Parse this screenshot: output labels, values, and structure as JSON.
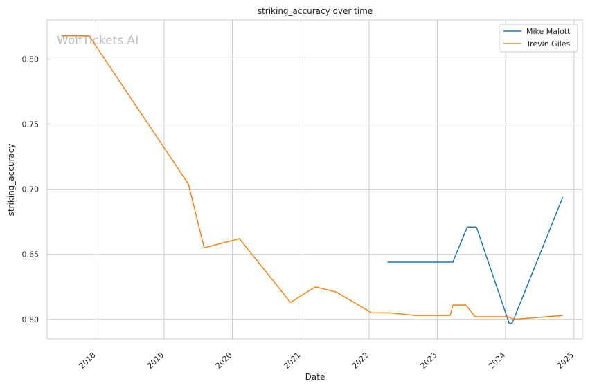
{
  "chart_data": {
    "type": "line",
    "title": "striking_accuracy over time",
    "xlabel": "Date",
    "ylabel": "striking_accuracy",
    "watermark": "WolfTickets.AI",
    "x_ticks": [
      "2018",
      "2019",
      "2020",
      "2021",
      "2022",
      "2023",
      "2024",
      "2025"
    ],
    "y_ticks": [
      "0.60",
      "0.65",
      "0.70",
      "0.75",
      "0.80"
    ],
    "ylim": [
      0.585,
      0.83
    ],
    "xlim": [
      "2017-04-15",
      "2025-02-15"
    ],
    "grid": true,
    "legend_position": "top-right",
    "series": [
      {
        "name": "Mike Malott",
        "color": "#1f77b4",
        "points": [
          {
            "x": "2022-04-09",
            "y": 0.644
          },
          {
            "x": "2023-03-25",
            "y": 0.644
          },
          {
            "x": "2023-06-10",
            "y": 0.671
          },
          {
            "x": "2023-07-29",
            "y": 0.671
          },
          {
            "x": "2024-01-20",
            "y": 0.597
          },
          {
            "x": "2024-02-05",
            "y": 0.597
          },
          {
            "x": "2024-11-02",
            "y": 0.694
          }
        ]
      },
      {
        "name": "Trevin Giles",
        "color": "#ff7f0e",
        "points": [
          {
            "x": "2017-07-01",
            "y": 0.818
          },
          {
            "x": "2017-11-25",
            "y": 0.818
          },
          {
            "x": "2019-05-11",
            "y": 0.704
          },
          {
            "x": "2019-08-03",
            "y": 0.655
          },
          {
            "x": "2020-02-08",
            "y": 0.662
          },
          {
            "x": "2020-11-07",
            "y": 0.613
          },
          {
            "x": "2021-03-20",
            "y": 0.625
          },
          {
            "x": "2021-07-10",
            "y": 0.621
          },
          {
            "x": "2022-01-15",
            "y": 0.605
          },
          {
            "x": "2022-04-23",
            "y": 0.605
          },
          {
            "x": "2022-09-03",
            "y": 0.603
          },
          {
            "x": "2023-03-11",
            "y": 0.603
          },
          {
            "x": "2023-03-25",
            "y": 0.611
          },
          {
            "x": "2023-06-03",
            "y": 0.611
          },
          {
            "x": "2023-07-22",
            "y": 0.602
          },
          {
            "x": "2024-01-13",
            "y": 0.602
          },
          {
            "x": "2024-02-17",
            "y": 0.6
          },
          {
            "x": "2024-11-02",
            "y": 0.603
          }
        ]
      }
    ]
  }
}
